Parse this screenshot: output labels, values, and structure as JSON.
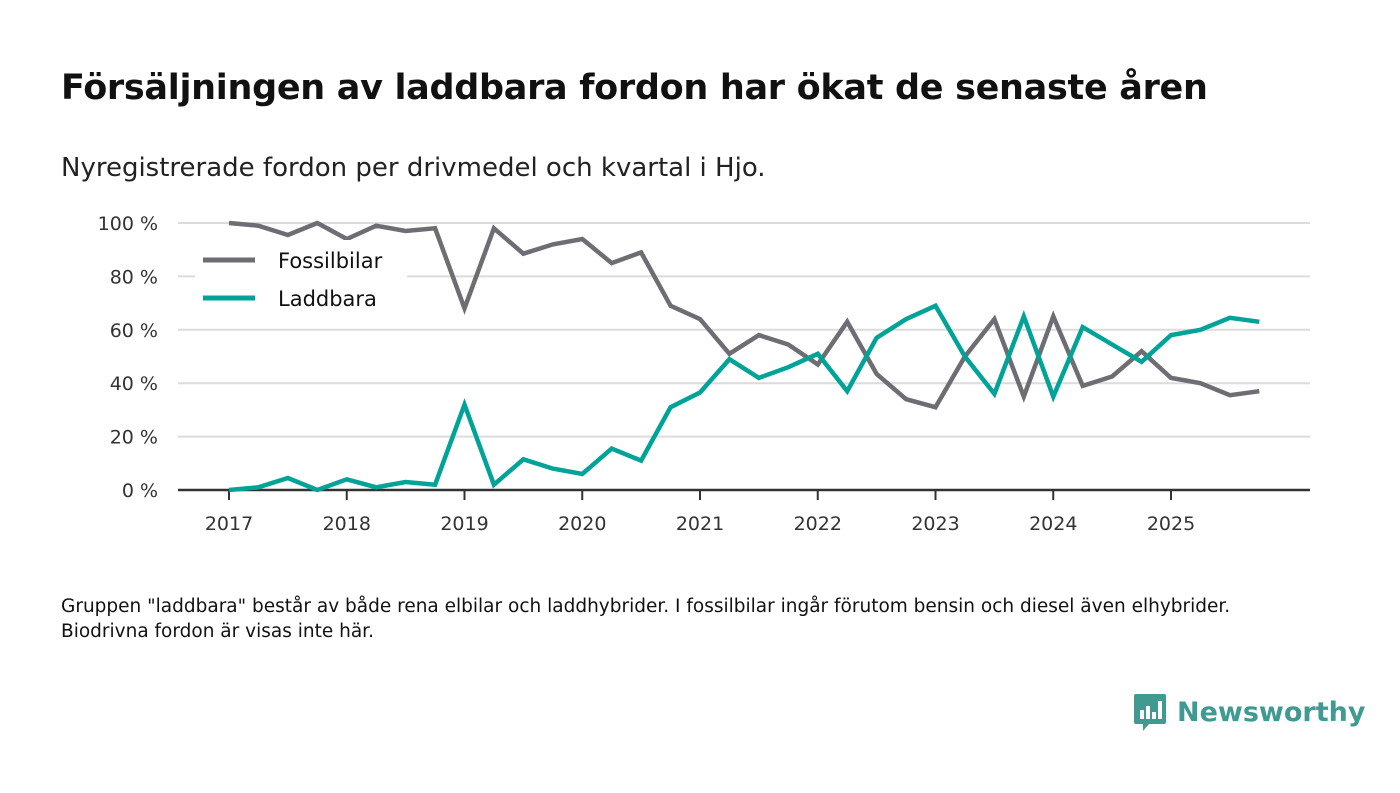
{
  "title": "Försäljningen av laddbara fordon har ökat de senaste åren",
  "subtitle": "Nyregistrerade fordon per drivmedel och kvartal i Hjo.",
  "note": "Gruppen \"laddbara\" består av både rena elbilar och laddhybrider. I fossilbilar ingår förutom bensin och diesel även elhybrider. Biodrivna fordon är visas inte här.",
  "logo": "Newsworthy",
  "chart_data": {
    "type": "line",
    "title": "Försäljningen av laddbara fordon har ökat de senaste åren",
    "xlabel": "",
    "ylabel": "",
    "ylim": [
      0,
      100
    ],
    "yticks": [
      "0 %",
      "20 %",
      "40 %",
      "60 %",
      "80 %",
      "100 %"
    ],
    "ytick_values": [
      0,
      20,
      40,
      60,
      80,
      100
    ],
    "xticks": [
      "2017",
      "2018",
      "2019",
      "2020",
      "2021",
      "2022",
      "2023",
      "2024",
      "2025"
    ],
    "x_start_year": 2017,
    "x_end_year": 2026,
    "points_per_year": 4,
    "grid": true,
    "legend_position": "top-left",
    "series": [
      {
        "name": "Fossilbilar",
        "color": "#6e6d73",
        "values": [
          100,
          99,
          95.5,
          100,
          94,
          99,
          97,
          98,
          68,
          98,
          88.5,
          92,
          94,
          85,
          89,
          69,
          64,
          51,
          58,
          54.5,
          47,
          63,
          43.5,
          34,
          31,
          50,
          64,
          35,
          65,
          39,
          42.5,
          52,
          42,
          40,
          35.5,
          37
        ]
      },
      {
        "name": "Laddbara",
        "color": "#00a397",
        "values": [
          0,
          1,
          4.5,
          0,
          4,
          1,
          3,
          2,
          32,
          2,
          11.5,
          8,
          6,
          15.5,
          11,
          31,
          36.5,
          49,
          42,
          46,
          51,
          37,
          57,
          64,
          69,
          50,
          36,
          65,
          35,
          61,
          54.5,
          48,
          58,
          60,
          64.5,
          63
        ]
      }
    ]
  }
}
